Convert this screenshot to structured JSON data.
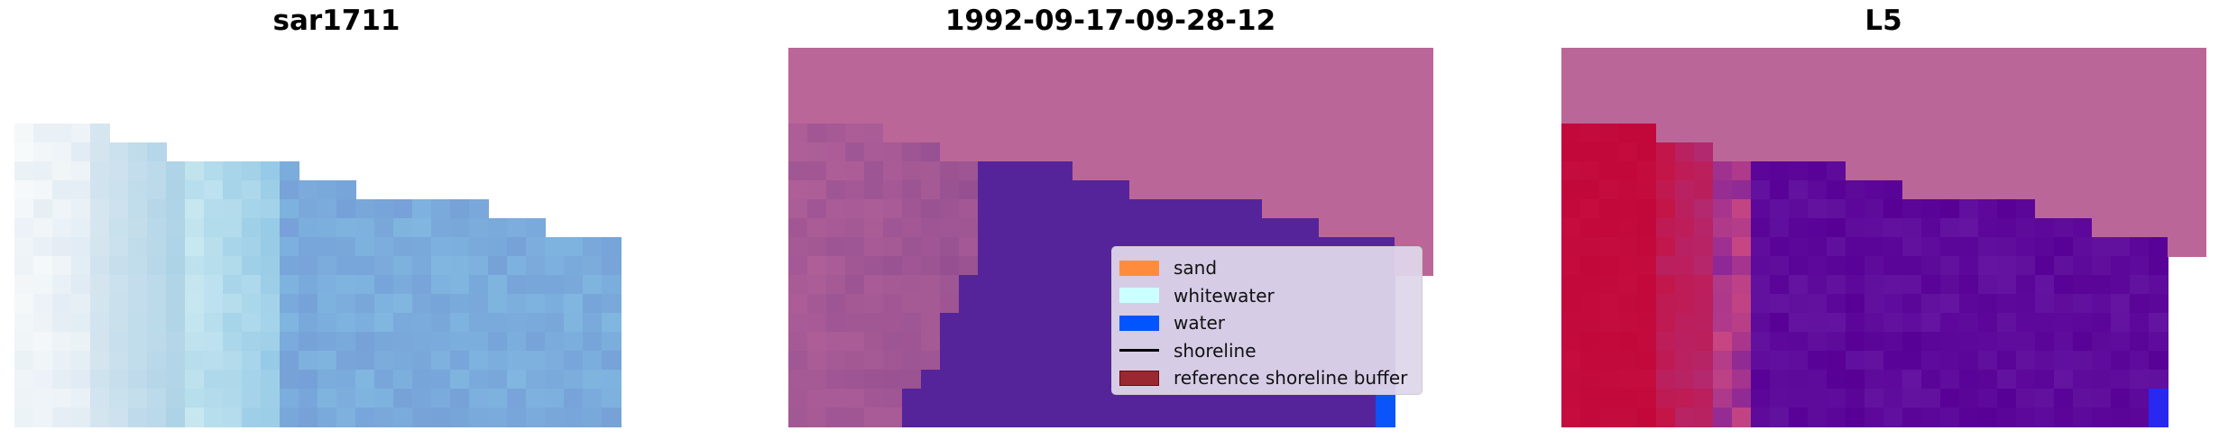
{
  "chart_data": [
    {
      "type": "heatmap",
      "title": "sar1711",
      "description_of_colors": "light blue / white image",
      "grid": false,
      "axes_visible": false
    },
    {
      "type": "heatmap",
      "title": "1992-09-17-09-28-12",
      "grid": false,
      "axes_visible": false,
      "legend": {
        "placement": "lower-right",
        "items": [
          {
            "label": "sand",
            "color": "#ff8c3c",
            "kind": "patch"
          },
          {
            "label": "whitewater",
            "color": "#ccffff",
            "kind": "patch"
          },
          {
            "label": "water",
            "color": "#0055ff",
            "kind": "patch"
          },
          {
            "label": "shoreline",
            "color": "#000000",
            "kind": "line"
          },
          {
            "label": "reference shoreline buffer",
            "color": "#9a2830",
            "kind": "patch"
          }
        ]
      }
    },
    {
      "type": "heatmap",
      "title": "L5",
      "grid": false,
      "axes_visible": false
    }
  ],
  "colors": {
    "pink": "#bb6698",
    "purple": "#55249a",
    "red": "#c2073a",
    "water": "#0b54f8",
    "blue_light": "#7aaadf"
  }
}
